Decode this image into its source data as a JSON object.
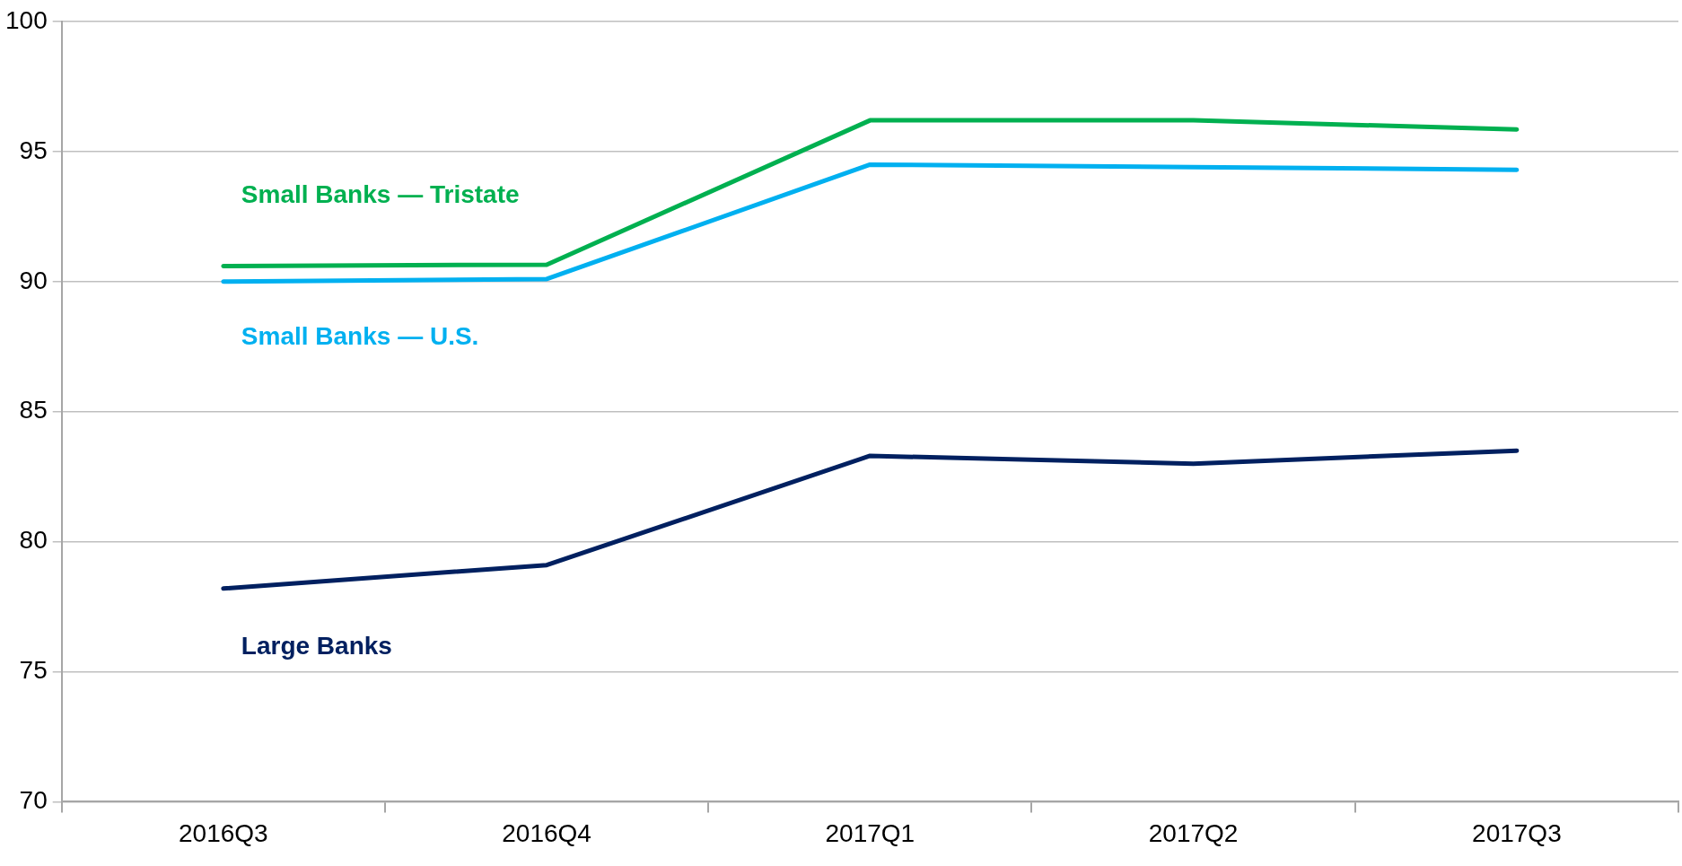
{
  "chart_data": {
    "type": "line",
    "categories": [
      "2016Q3",
      "2016Q4",
      "2017Q1",
      "2017Q2",
      "2017Q3"
    ],
    "series": [
      {
        "name": "Small Banks — Tristate",
        "color": "#00b050",
        "values": [
          90.6,
          90.65,
          96.2,
          96.2,
          95.85
        ]
      },
      {
        "name": "Small Banks — U.S.",
        "color": "#00b0f0",
        "values": [
          90.0,
          90.1,
          94.5,
          94.4,
          94.3
        ]
      },
      {
        "name": "Large Banks",
        "color": "#002060",
        "values": [
          78.2,
          79.1,
          83.3,
          83.0,
          83.5
        ]
      }
    ],
    "ylim": [
      70,
      100
    ],
    "yticks": [
      70,
      75,
      80,
      85,
      90,
      95,
      100
    ],
    "grid": "y",
    "legend": false,
    "marker": "none",
    "line_style": "solid"
  }
}
